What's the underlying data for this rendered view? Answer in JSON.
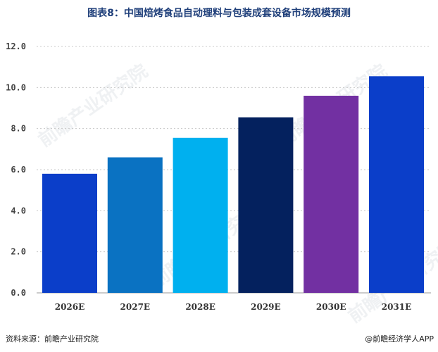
{
  "title": "图表8：中国焙烤食品自动理料与包装成套设备市场规模预测",
  "footer": {
    "source": "资料来源：前瞻产业研究院",
    "brand": "@前瞻经济学人APP"
  },
  "watermark": "前瞻产业研究院",
  "chart_data": {
    "type": "bar",
    "categories": [
      "2026E",
      "2027E",
      "2028E",
      "2029E",
      "2030E",
      "2031E"
    ],
    "values": [
      5.8,
      6.6,
      7.55,
      8.55,
      9.6,
      10.55
    ],
    "bar_colors": [
      "#0b3ec9",
      "#0a72c2",
      "#00b0ef",
      "#04215e",
      "#7230a2",
      "#0b3ec9"
    ],
    "y_ticks": [
      "0.0",
      "2.0",
      "4.0",
      "6.0",
      "8.0",
      "10.0",
      "12.0"
    ],
    "ylim": [
      0,
      12
    ],
    "grid": true
  }
}
